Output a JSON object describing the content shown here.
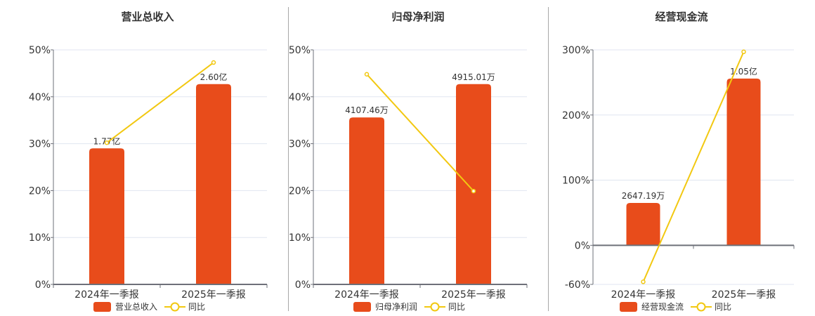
{
  "colors": {
    "bar": "#E84C1B",
    "line": "#F2C811",
    "grid": "#E0E6F0",
    "axis": "#6E7079",
    "text": "#333333"
  },
  "charts": [
    {
      "title": "营业总收入",
      "bar_series_name": "营业总收入",
      "line_series_name": "同比",
      "categories": [
        "2024年一季报",
        "2025年一季报"
      ],
      "y_ticks": [
        "50%",
        "40%",
        "30%",
        "20%",
        "10%",
        "0%"
      ],
      "bar_labels": [
        "1.77亿",
        "2.60亿"
      ]
    },
    {
      "title": "归母净利润",
      "bar_series_name": "归母净利润",
      "line_series_name": "同比",
      "categories": [
        "2024年一季报",
        "2025年一季报"
      ],
      "y_ticks": [
        "50%",
        "40%",
        "30%",
        "20%",
        "10%",
        "0%"
      ],
      "bar_labels": [
        "4107.46万",
        "4915.01万"
      ]
    },
    {
      "title": "经营现金流",
      "bar_series_name": "经营现金流",
      "line_series_name": "同比",
      "categories": [
        "2024年一季报",
        "2025年一季报"
      ],
      "y_ticks": [
        "300%",
        "200%",
        "100%",
        "0%",
        "-60%"
      ],
      "bar_labels": [
        "2647.19万",
        "1.05亿"
      ]
    }
  ],
  "chart_data": [
    {
      "type": "bar+line",
      "title": "营业总收入",
      "categories": [
        "2024年一季报",
        "2025年一季报"
      ],
      "series": [
        {
          "name": "营业总收入",
          "type": "bar",
          "labels": [
            "1.77亿",
            "2.60亿"
          ],
          "values_axis_pct": [
            29.0,
            42.7
          ]
        },
        {
          "name": "同比",
          "type": "line",
          "values": [
            30.2,
            47.3
          ]
        }
      ],
      "ylabel": "",
      "ylim": [
        0,
        50
      ],
      "y_ticks": [
        0,
        10,
        20,
        30,
        40,
        50
      ],
      "y_format": "%",
      "grid": true,
      "legend_position": "bottom"
    },
    {
      "type": "bar+line",
      "title": "归母净利润",
      "categories": [
        "2024年一季报",
        "2025年一季报"
      ],
      "series": [
        {
          "name": "归母净利润",
          "type": "bar",
          "labels": [
            "4107.46万",
            "4915.01万"
          ],
          "values_axis_pct": [
            35.6,
            42.7
          ]
        },
        {
          "name": "同比",
          "type": "line",
          "values": [
            44.8,
            19.9
          ]
        }
      ],
      "ylabel": "",
      "ylim": [
        0,
        50
      ],
      "y_ticks": [
        0,
        10,
        20,
        30,
        40,
        50
      ],
      "y_format": "%",
      "grid": true,
      "legend_position": "bottom"
    },
    {
      "type": "bar+line",
      "title": "经营现金流",
      "categories": [
        "2024年一季报",
        "2025年一季报"
      ],
      "series": [
        {
          "name": "经营现金流",
          "type": "bar",
          "labels": [
            "2647.19万",
            "1.05亿"
          ],
          "values_axis_pct": [
            65,
            256
          ]
        },
        {
          "name": "同比",
          "type": "line",
          "values": [
            -56,
            297
          ]
        }
      ],
      "ylabel": "",
      "ylim": [
        -60,
        300
      ],
      "y_ticks": [
        -60,
        0,
        100,
        200,
        300
      ],
      "y_format": "%",
      "grid": true,
      "legend_position": "bottom"
    }
  ]
}
